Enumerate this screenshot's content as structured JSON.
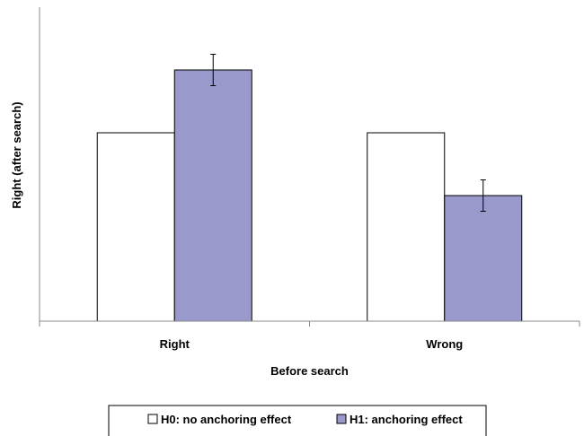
{
  "chart_data": {
    "type": "bar",
    "title": "",
    "xlabel": "Before search",
    "ylabel": "Right (after search)",
    "categories": [
      "Right",
      "Wrong"
    ],
    "ylim": [
      0,
      1
    ],
    "yticks_shown": false,
    "grid": false,
    "legend_position": "bottom",
    "series": [
      {
        "name": "H0: no anchoring effect",
        "color": "#ffffff",
        "values": [
          0.6,
          0.6
        ],
        "errors": [
          null,
          null
        ]
      },
      {
        "name": "H1: anchoring effect",
        "color": "#9999cc",
        "values": [
          0.8,
          0.4
        ],
        "errors": [
          0.05,
          0.05
        ]
      }
    ]
  }
}
